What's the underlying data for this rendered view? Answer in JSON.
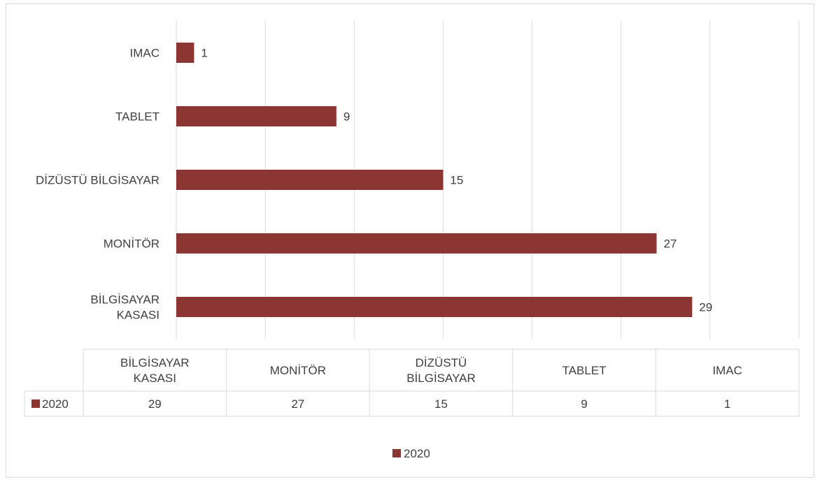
{
  "chart_data": {
    "type": "bar",
    "orientation": "horizontal",
    "categories": [
      "BİLGİSAYAR KASASI",
      "MONİTÖR",
      "DİZÜSTÜ BİLGİSAYAR",
      "TABLET",
      "IMAC"
    ],
    "category_label_lines": [
      [
        "BİLGİSAYAR",
        "KASASI"
      ],
      [
        "MONİTÖR"
      ],
      [
        "DİZÜSTÜ BİLGİSAYAR"
      ],
      [
        "TABLET"
      ],
      [
        "IMAC"
      ]
    ],
    "table_label_lines": [
      [
        "BİLGİSAYAR",
        "KASASI"
      ],
      [
        "MONİTÖR"
      ],
      [
        "DİZÜSTÜ",
        "BİLGİSAYAR"
      ],
      [
        "TABLET"
      ],
      [
        "IMAC"
      ]
    ],
    "series": [
      {
        "name": "2020",
        "values": [
          29,
          27,
          15,
          9,
          1
        ],
        "color": "#8b3633"
      }
    ],
    "xlim": [
      0,
      35
    ],
    "x_grid_step": 5,
    "grid": true,
    "data_labels": true,
    "data_table": true,
    "legend": "bottom",
    "title": "",
    "xlabel": "",
    "ylabel": ""
  },
  "colors": {
    "bar": "#8b3633",
    "grid": "#d9d9d9",
    "text": "#404040"
  }
}
